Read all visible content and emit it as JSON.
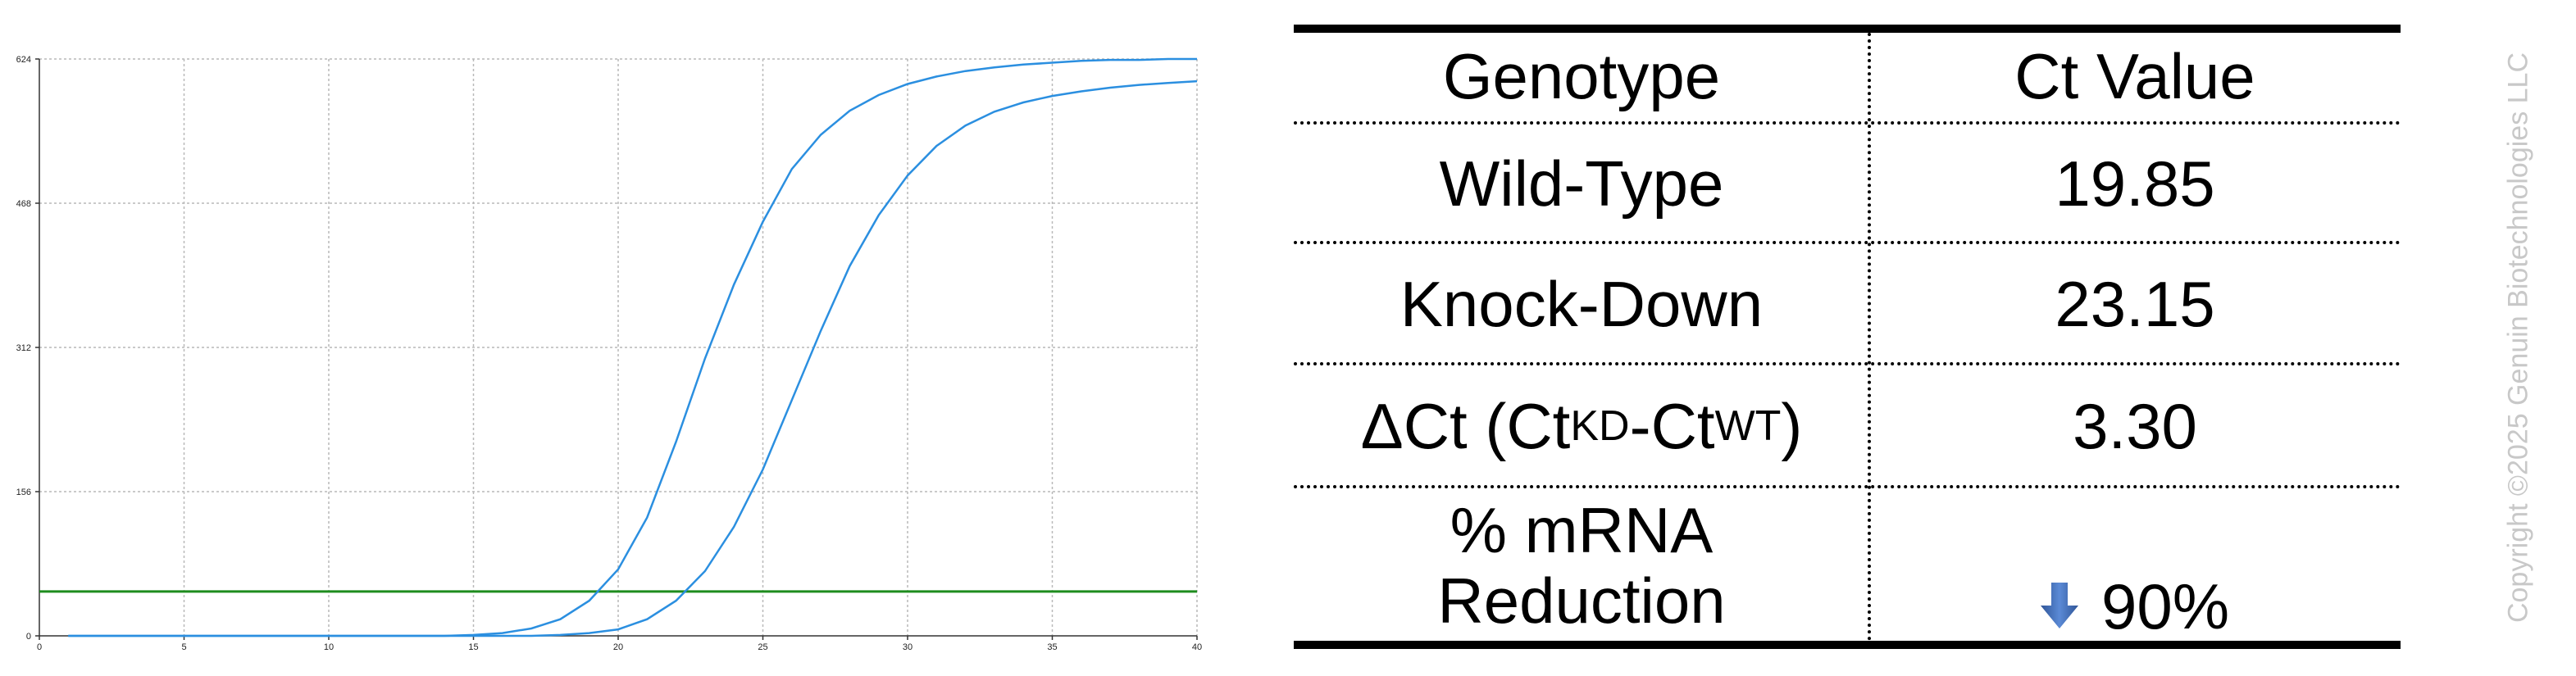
{
  "chart_data": {
    "type": "line",
    "title": "",
    "xlabel": "",
    "ylabel": "",
    "xlim": [
      0,
      40
    ],
    "ylim": [
      0,
      624
    ],
    "xticks": [
      0,
      5,
      10,
      15,
      20,
      25,
      30,
      35,
      40
    ],
    "yticks": [
      0,
      156,
      312,
      468,
      624
    ],
    "grid": true,
    "threshold": 48,
    "series": [
      {
        "name": "",
        "x": [
          1,
          2,
          3,
          4,
          5,
          6,
          7,
          8,
          9,
          10,
          11,
          12,
          13,
          14,
          15,
          16,
          17,
          18,
          19,
          20,
          21,
          22,
          23,
          24,
          25,
          26,
          27,
          28,
          29,
          30,
          31,
          32,
          33,
          34,
          35,
          36,
          37,
          38,
          39,
          40
        ],
        "values": [
          0,
          0,
          0,
          0,
          0,
          0,
          0,
          0,
          0,
          0,
          0,
          0,
          0,
          0,
          1,
          3,
          8,
          18,
          38,
          72,
          128,
          210,
          300,
          380,
          448,
          505,
          542,
          568,
          585,
          597,
          605,
          611,
          615,
          618,
          620,
          622,
          623,
          623,
          624,
          624
        ]
      },
      {
        "name": "",
        "x": [
          1,
          2,
          3,
          4,
          5,
          6,
          7,
          8,
          9,
          10,
          11,
          12,
          13,
          14,
          15,
          16,
          17,
          18,
          19,
          20,
          21,
          22,
          23,
          24,
          25,
          26,
          27,
          28,
          29,
          30,
          31,
          32,
          33,
          34,
          35,
          36,
          37,
          38,
          39,
          40
        ],
        "values": [
          0,
          0,
          0,
          0,
          0,
          0,
          0,
          0,
          0,
          0,
          0,
          0,
          0,
          0,
          0,
          0,
          0,
          1,
          3,
          7,
          18,
          38,
          70,
          118,
          180,
          255,
          330,
          400,
          455,
          498,
          530,
          552,
          567,
          577,
          584,
          589,
          593,
          596,
          598,
          600
        ]
      }
    ]
  },
  "colors": {
    "curve": "#2b8fe0",
    "threshold": "#1e8c1e",
    "grid": "#b9b9b9",
    "arrow": "#4472c4",
    "copyright": "#c8c8c8"
  },
  "table": {
    "header": {
      "genotype": "Genotype",
      "ct": "Ct Value"
    },
    "wild_type": {
      "label": "Wild-Type",
      "value": "19.85"
    },
    "knock_down": {
      "label": "Knock-Down",
      "value": "23.15"
    },
    "delta": {
      "prefix": "ΔCt (Ct",
      "sub1": "KD",
      "middle": "-Ct",
      "sub2": "WT",
      "suffix": ")",
      "value": "3.30"
    },
    "reduction": {
      "line1": "% mRNA",
      "line2": "Reduction",
      "value": "90%",
      "icon": "down-arrow-icon"
    }
  },
  "copyright": "Copyright ©2025 Genuin Biotechnologies LLC"
}
